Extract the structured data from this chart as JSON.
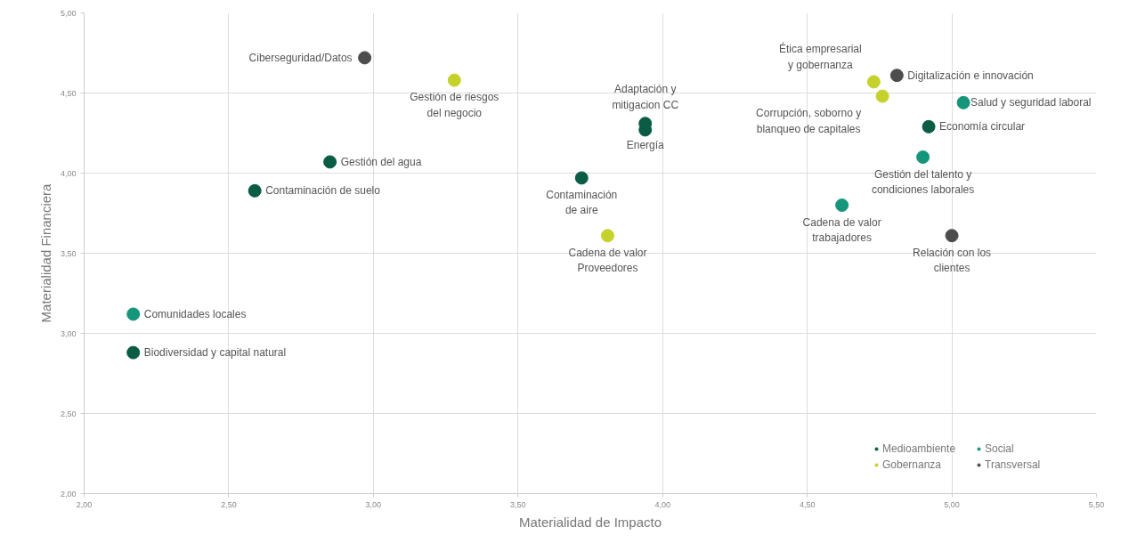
{
  "chart_data": {
    "type": "scatter",
    "xlabel": "Materialidad de Impacto",
    "ylabel": "Materialidad Financiera",
    "xlim": [
      2.0,
      5.5
    ],
    "ylim": [
      2.0,
      5.0
    ],
    "xticks": [
      {
        "value": 2.0,
        "label": "2,00"
      },
      {
        "value": 2.5,
        "label": "2,50"
      },
      {
        "value": 3.0,
        "label": "3,00"
      },
      {
        "value": 3.5,
        "label": "3,50"
      },
      {
        "value": 4.0,
        "label": "4,00"
      },
      {
        "value": 4.5,
        "label": "4,50"
      },
      {
        "value": 5.0,
        "label": "5,00"
      },
      {
        "value": 5.5,
        "label": "5,50"
      }
    ],
    "yticks": [
      {
        "value": 2.0,
        "label": "2,00"
      },
      {
        "value": 2.5,
        "label": "2,50"
      },
      {
        "value": 3.0,
        "label": "3,00"
      },
      {
        "value": 3.5,
        "label": "3,50"
      },
      {
        "value": 4.0,
        "label": "4,00"
      },
      {
        "value": 4.5,
        "label": "4,50"
      },
      {
        "value": 5.0,
        "label": "5,00"
      }
    ],
    "grid": true,
    "legend": "bottom right",
    "marker": "circle",
    "series": [
      {
        "name": "Medioambiente",
        "color": "#0a5c45",
        "x": [
          2.85,
          2.59,
          2.17,
          3.94,
          3.94,
          3.72,
          4.92
        ],
        "values": [
          4.07,
          3.89,
          2.88,
          4.31,
          4.27,
          3.97,
          4.29
        ]
      },
      {
        "name": "Gobernanza",
        "color": "#c5d22c",
        "x": [
          3.28,
          3.81,
          4.73,
          4.76
        ],
        "values": [
          4.58,
          3.61,
          4.57,
          4.48
        ]
      },
      {
        "name": "Social",
        "color": "#15957a",
        "x": [
          2.17,
          5.04,
          4.9,
          4.62
        ],
        "values": [
          3.12,
          4.44,
          4.1,
          3.8
        ]
      },
      {
        "name": "Transversal",
        "color": "#4d4d4d",
        "x": [
          2.97,
          4.81,
          5.0
        ],
        "values": [
          4.72,
          4.61,
          3.61
        ]
      }
    ],
    "annotations": [
      {
        "text": "Ciberseguridad/Datos",
        "x": 2.97,
        "y": 4.72
      },
      {
        "text": "Gestión de riesgos\ndel negocio",
        "x": 3.28,
        "y": 4.58
      },
      {
        "text": "Gestión del agua",
        "x": 2.85,
        "y": 4.07
      },
      {
        "text": "Contaminación de suelo",
        "x": 2.59,
        "y": 3.89
      },
      {
        "text": "Comunidades locales",
        "x": 2.17,
        "y": 3.12
      },
      {
        "text": "Biodiversidad y capital natural",
        "x": 2.17,
        "y": 2.88
      },
      {
        "text": "Adaptación y\nmitigacion CC",
        "x": 3.94,
        "y": 4.31
      },
      {
        "text": "Energía",
        "x": 3.94,
        "y": 4.27
      },
      {
        "text": "Contaminación\nde aire",
        "x": 3.72,
        "y": 3.97
      },
      {
        "text": "Cadena de valor\nProveedores",
        "x": 3.81,
        "y": 3.61
      },
      {
        "text": "Ética empresarial\ny gobernanza",
        "x": 4.73,
        "y": 4.57
      },
      {
        "text": "Digitalización e innovación",
        "x": 4.81,
        "y": 4.61
      },
      {
        "text": "Corrupción, soborno y\nblanqueo de capitales",
        "x": 4.76,
        "y": 4.48
      },
      {
        "text": "Salud y seguridad laboral",
        "x": 5.04,
        "y": 4.44
      },
      {
        "text": "Economía circular",
        "x": 4.92,
        "y": 4.29
      },
      {
        "text": "Gestión del talento y\ncondiciones laborales",
        "x": 4.9,
        "y": 4.1
      },
      {
        "text": "Cadena de valor\ntrabajadores",
        "x": 4.62,
        "y": 3.8
      },
      {
        "text": "Relación con los\nclientes",
        "x": 5.0,
        "y": 3.61
      }
    ]
  }
}
